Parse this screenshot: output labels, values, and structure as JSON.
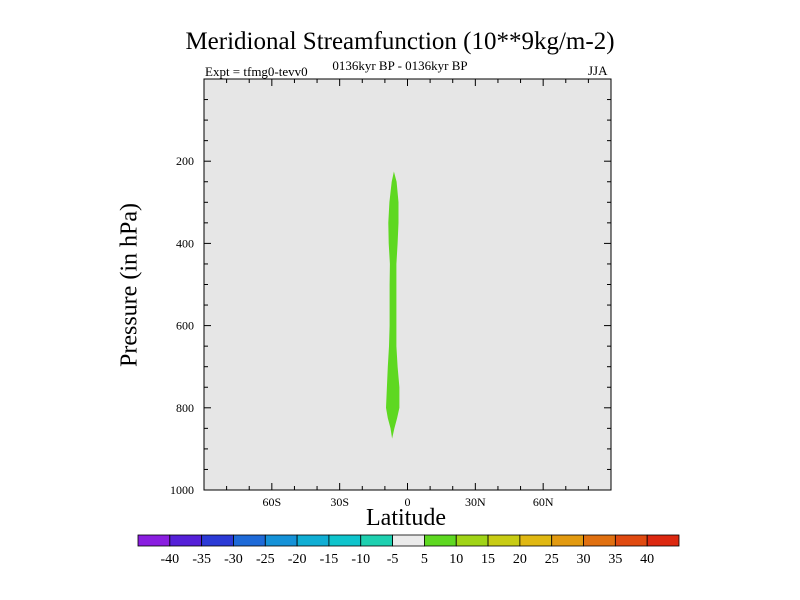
{
  "title": "Meridional Streamfunction (10**9kg/m-2)",
  "subtitle_left": "Expt = tfmg0-tevv0",
  "subtitle_center": "0136kyr BP - 0136kyr BP",
  "subtitle_right": "JJA",
  "chart_data": {
    "type": "heatmap",
    "xlabel": "Latitude",
    "ylabel": "Pressure (in hPa)",
    "xlim": [
      -90,
      90
    ],
    "ylim": [
      1000,
      0
    ],
    "x_ticks": [
      {
        "value": -60,
        "label": "60S"
      },
      {
        "value": -30,
        "label": "30S"
      },
      {
        "value": 0,
        "label": "0"
      },
      {
        "value": 30,
        "label": "30N"
      },
      {
        "value": 60,
        "label": "60N"
      }
    ],
    "y_ticks": [
      {
        "value": 200,
        "label": "200"
      },
      {
        "value": 400,
        "label": "400"
      },
      {
        "value": 600,
        "label": "600"
      },
      {
        "value": 800,
        "label": "800"
      },
      {
        "value": 1000,
        "label": "1000"
      }
    ],
    "background_color": "#e6e6e6",
    "shaded_region": {
      "level_range": [
        5,
        10
      ],
      "color": "#5ed821",
      "pressure_range": [
        225,
        875
      ],
      "latitude_center": -6.5,
      "latitude_outline": [
        [
          225,
          -6
        ],
        [
          250,
          -7
        ],
        [
          300,
          -8
        ],
        [
          350,
          -8.5
        ],
        [
          400,
          -8.3
        ],
        [
          450,
          -7.8
        ],
        [
          500,
          -7.9
        ],
        [
          550,
          -7.9
        ],
        [
          600,
          -7.9
        ],
        [
          650,
          -8.2
        ],
        [
          700,
          -8.7
        ],
        [
          750,
          -9.1
        ],
        [
          800,
          -9.5
        ],
        [
          825,
          -8.7
        ],
        [
          850,
          -7.5
        ],
        [
          875,
          -6.8
        ],
        [
          850,
          -5.8
        ],
        [
          825,
          -4.6
        ],
        [
          800,
          -3.6
        ],
        [
          750,
          -3.6
        ],
        [
          700,
          -4.4
        ],
        [
          650,
          -4.9
        ],
        [
          600,
          -4.9
        ],
        [
          550,
          -4.9
        ],
        [
          500,
          -4.9
        ],
        [
          450,
          -4.9
        ],
        [
          400,
          -4.4
        ],
        [
          350,
          -4.0
        ],
        [
          300,
          -4.0
        ],
        [
          250,
          -4.8
        ],
        [
          225,
          -6
        ]
      ]
    },
    "colorbar": {
      "labels": [
        "-40",
        "-35",
        "-30",
        "-25",
        "-20",
        "-15",
        "-10",
        "-5",
        "5",
        "10",
        "15",
        "20",
        "25",
        "30",
        "35",
        "40"
      ],
      "colors": [
        "#8a1ee0",
        "#5520d8",
        "#2b3ad6",
        "#1e6ad8",
        "#1592d8",
        "#10aed4",
        "#0fc4cc",
        "#1ed0b0",
        "#ebebeb",
        "#5ed821",
        "#a0d416",
        "#c8cc14",
        "#e0b812",
        "#e29a10",
        "#e07010",
        "#e04a10",
        "#dc2810"
      ]
    }
  }
}
